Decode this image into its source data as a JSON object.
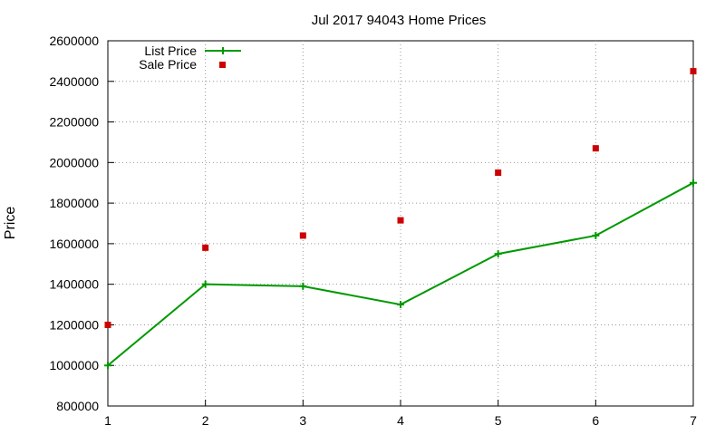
{
  "chart_data": {
    "type": "line",
    "title": "Jul 2017 94043 Home Prices",
    "xlabel": "",
    "ylabel": "Price",
    "x": [
      1,
      2,
      3,
      4,
      5,
      6,
      7
    ],
    "xlim": [
      1,
      7
    ],
    "ylim": [
      800000,
      2600000
    ],
    "x_ticks": [
      "1",
      "2",
      "3",
      "4",
      "5",
      "6",
      "7"
    ],
    "y_ticks": [
      "800000",
      "1000000",
      "1200000",
      "1400000",
      "1600000",
      "1800000",
      "2000000",
      "2200000",
      "2400000",
      "2600000"
    ],
    "grid": true,
    "legend_position": "top-left",
    "series": [
      {
        "name": "List Price",
        "type": "line",
        "color": "#009900",
        "values": [
          1000000,
          1400000,
          1390000,
          1300000,
          1550000,
          1640000,
          1900000
        ]
      },
      {
        "name": "Sale Price",
        "type": "scatter",
        "color": "#cc0000",
        "values": [
          1200000,
          1580000,
          1640000,
          1715000,
          1950000,
          2070000,
          2450000
        ]
      }
    ]
  }
}
